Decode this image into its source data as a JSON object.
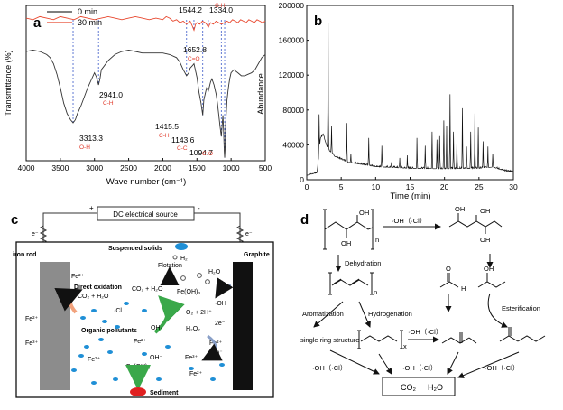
{
  "chart_data": [
    {
      "panel": "a",
      "type": "line",
      "xlabel": "Wave number (cm⁻¹)",
      "ylabel": "Transmittance (%)",
      "xlim": [
        4000,
        500
      ],
      "x_ticks": [
        "4000",
        "3500",
        "3000",
        "2500",
        "2000",
        "1500",
        "1000",
        "500"
      ],
      "legend": {
        "position": "top-left",
        "entries": [
          "0 min",
          "30 min"
        ]
      },
      "series": [
        {
          "name": "0 min",
          "color": "#333333",
          "x": [
            4000,
            3900,
            3800,
            3700,
            3650,
            3600,
            3550,
            3500,
            3450,
            3400,
            3350,
            3313,
            3280,
            3250,
            3200,
            3150,
            3100,
            3050,
            3000,
            2970,
            2941,
            2920,
            2900,
            2850,
            2800,
            2700,
            2600,
            2500,
            2400,
            2300,
            2200,
            2100,
            2000,
            1900,
            1800,
            1750,
            1700,
            1652,
            1620,
            1600,
            1560,
            1544,
            1500,
            1470,
            1440,
            1415,
            1400,
            1380,
            1360,
            1334,
            1300,
            1280,
            1250,
            1220,
            1200,
            1180,
            1160,
            1143,
            1130,
            1120,
            1110,
            1100,
            1094,
            1088,
            1080,
            1060,
            1040,
            1020,
            1000,
            960,
            900,
            850,
            800,
            750,
            700,
            650,
            600,
            550,
            500
          ],
          "y": [
            72,
            73,
            72,
            70,
            68,
            64,
            57,
            48,
            38,
            31,
            27,
            25,
            27,
            31,
            36,
            42,
            48,
            53,
            58,
            55,
            50,
            54,
            60,
            63,
            66,
            70,
            72,
            73,
            72,
            71,
            71,
            71,
            71,
            70,
            68,
            65,
            60,
            56,
            58,
            61,
            63,
            64,
            55,
            45,
            38,
            30,
            40,
            44,
            48,
            46,
            52,
            54,
            50,
            44,
            38,
            30,
            22,
            16,
            24,
            30,
            20,
            6,
            2,
            8,
            24,
            40,
            48,
            54,
            58,
            60,
            58,
            56,
            56,
            57,
            58,
            60,
            64,
            68,
            70
          ]
        },
        {
          "name": "30 min",
          "color": "#e8472e",
          "x": [
            4000,
            3900,
            3800,
            3700,
            3600,
            3500,
            3400,
            3300,
            3200,
            3100,
            3000,
            2900,
            2800,
            2700,
            2600,
            2500,
            2400,
            2300,
            2200,
            2100,
            2000,
            1950,
            1900,
            1850,
            1800,
            1750,
            1700,
            1652,
            1600,
            1570,
            1544,
            1520,
            1500,
            1460,
            1420,
            1380,
            1360,
            1334,
            1300,
            1260,
            1220,
            1180,
            1140,
            1100,
            1060,
            1020,
            980,
            940,
            900,
            860,
            820,
            780,
            740,
            700,
            660,
            620,
            580,
            540,
            500
          ],
          "y": [
            94,
            93,
            95,
            94,
            93,
            95,
            94,
            93,
            95,
            94,
            93,
            94,
            95,
            94,
            93,
            94,
            95,
            94,
            93,
            94,
            93,
            95,
            94,
            92,
            93,
            91,
            92,
            90,
            92,
            89,
            86,
            90,
            91,
            90,
            92,
            91,
            90,
            88,
            91,
            90,
            92,
            91,
            90,
            91,
            92,
            91,
            93,
            92,
            91,
            93,
            92,
            91,
            93,
            92,
            91,
            93,
            92,
            91,
            92
          ]
        }
      ],
      "peak_labels": [
        {
          "value": "3313.3",
          "group": "O-H",
          "x": 3313,
          "y": 25
        },
        {
          "value": "2941.0",
          "group": "C-H",
          "x": 2941,
          "y": 50
        },
        {
          "value": "1652.8",
          "group": "C=O",
          "x": 1652,
          "y": 56
        },
        {
          "value": "1544.2",
          "group": "",
          "x": 1544,
          "y": 86
        },
        {
          "value": "1334.0",
          "group": "C-H",
          "x": 1334,
          "y": 88
        },
        {
          "value": "1415.5",
          "group": "C-H",
          "x": 1415,
          "y": 30
        },
        {
          "value": "1143.6",
          "group": "C-C",
          "x": 1143,
          "y": 16
        },
        {
          "value": "1094.7",
          "group": "C-O",
          "x": 1094,
          "y": 2
        }
      ]
    },
    {
      "panel": "b",
      "type": "line",
      "xlabel": "Time (min)",
      "ylabel": "Abundance",
      "xlim": [
        0,
        30
      ],
      "ylim": [
        0,
        200000
      ],
      "x_ticks": [
        "0",
        "5",
        "10",
        "15",
        "20",
        "25",
        "30"
      ],
      "y_ticks": [
        "0",
        "40000",
        "80000",
        "120000",
        "160000",
        "200000"
      ],
      "series": [
        {
          "name": "",
          "color": "#111111",
          "baseline": [
            [
              0,
              5000
            ],
            [
              1.5,
              8000
            ],
            [
              2,
              48000
            ],
            [
              2.4,
              52000
            ],
            [
              3,
              36000
            ],
            [
              4,
              27000
            ],
            [
              6,
              20000
            ],
            [
              10,
              15000
            ],
            [
              15,
              13000
            ],
            [
              20,
              12500
            ],
            [
              25,
              13000
            ],
            [
              27,
              14500
            ],
            [
              29,
              9500
            ],
            [
              30,
              9000
            ]
          ],
          "peaks": [
            [
              1.8,
              75000
            ],
            [
              2.3,
              50000
            ],
            [
              3.1,
              180000
            ],
            [
              3.6,
              62000
            ],
            [
              5.8,
              65000
            ],
            [
              6.4,
              30000
            ],
            [
              9.0,
              48000
            ],
            [
              10.9,
              39000
            ],
            [
              12.3,
              20000
            ],
            [
              13.5,
              25000
            ],
            [
              14.6,
              28000
            ],
            [
              16.0,
              48000
            ],
            [
              17.2,
              39000
            ],
            [
              18.2,
              55000
            ],
            [
              18.9,
              46000
            ],
            [
              19.3,
              50000
            ],
            [
              19.9,
              68000
            ],
            [
              20.3,
              62000
            ],
            [
              20.8,
              98000
            ],
            [
              21.3,
              55000
            ],
            [
              21.8,
              45000
            ],
            [
              22.6,
              82000
            ],
            [
              23.2,
              38000
            ],
            [
              23.8,
              55000
            ],
            [
              24.4,
              76000
            ],
            [
              24.9,
              60000
            ],
            [
              25.6,
              44000
            ],
            [
              26.3,
              38000
            ],
            [
              27.0,
              30000
            ]
          ]
        }
      ]
    }
  ],
  "panel_c": {
    "panel_letter": "c",
    "source_box": "DC electrical source",
    "plus": "+",
    "minus": "-",
    "electron_left": "e⁻",
    "electron_right": "e⁻",
    "iron_rod": "iron rod",
    "graphite": "Graphite",
    "suspended_solids": "Suspended solids",
    "h2_top": "H₂",
    "flotation": "Flotation",
    "h2o": "H₂O",
    "feoh3_top": "Fe(OH)₃",
    "co2_h2o": "CO₂ + H₂O",
    "fe2_left1": "Fe²⁺",
    "direct_oxidation": "Direct oxidation",
    "co2_h2o_left": "CO₂ + H₂O",
    "fe2_side1": "Fe²⁺",
    "fe3_side": "Fe³⁺",
    "organic_pollutants": "Organic pollutants",
    "cl_radical": "·Cl",
    "oh_center": "OH·",
    "oh_right": "·OH",
    "o2_2h": "O₂ + 2H⁺",
    "two_e": "2e⁻",
    "h2o2": "H₂O₂",
    "fe2_center": "Fe²⁺",
    "fe3_center": "Fe³⁺",
    "oh_minus": "OH⁻",
    "fe2_right": "Fe²⁺",
    "fe2_bottom_left": "Fe²⁺",
    "fe_oh3_bottom": "Fe(OH)₃",
    "fe2_bottom": "Fe²⁺",
    "sediment": "Sediment",
    "electron_right_small": "e⁻"
  },
  "panel_d": {
    "panel_letter": "d",
    "n": "n",
    "x_sub": "x",
    "oh": "OH",
    "oh_cl_1": "·OH（·Cl）",
    "dehydration": "Dehydration",
    "aromatization": "Aromatization",
    "hydrogenation": "Hydrogenation",
    "esterification": "Esterification",
    "single_ring": "single ring structure",
    "oh_cl_chain": "·OH（·Cl）",
    "h_label": "H",
    "o_label": "O",
    "oh_cl_left": "·OH（·Cl）",
    "oh_cl_mid": "·OH（·Cl）",
    "oh_cl_right": "·OH（·Cl）",
    "final_co2": "CO₂",
    "final_h2o": "H₂O"
  },
  "colors": {
    "red_label": "#e03a2a",
    "blue_ion": "#1f8fd6",
    "electrode_left": "#8c8c8c",
    "electrode_right": "#111111",
    "sediment": "#e02020",
    "arrow_green": "#3aa84a"
  }
}
